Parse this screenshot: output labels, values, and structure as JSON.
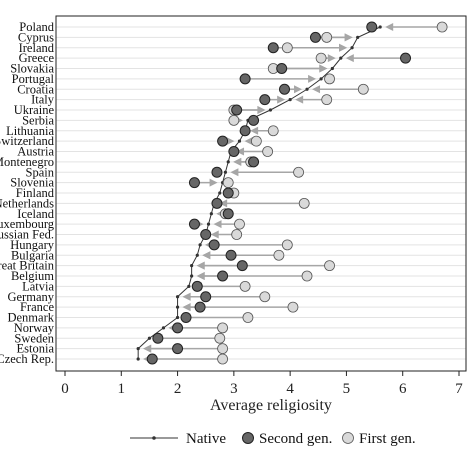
{
  "chart_data": {
    "type": "scatter",
    "xlabel": "Average religiosity",
    "xlim": [
      0,
      7
    ],
    "xticks": [
      0,
      1,
      2,
      3,
      4,
      5,
      6,
      7
    ],
    "grid": "horizontal",
    "legend_position": "bottom",
    "categories": [
      "Poland",
      "Cyprus",
      "Ireland",
      "Greece",
      "Slovakia",
      "Portugal",
      "Croatia",
      "Italy",
      "Ukraine",
      "Serbia",
      "Lithuania",
      "Switzerland",
      "Austria",
      "Montenegro",
      "Spain",
      "Slovenia",
      "Finland",
      "Netherlands",
      "Iceland",
      "Luxembourg",
      "Russian Fed.",
      "Hungary",
      "Bulgaria",
      "Great Britain",
      "Belgium",
      "Latvia",
      "Germany",
      "France",
      "Denmark",
      "Norway",
      "Sweden",
      "Estonia",
      "Czech Rep."
    ],
    "series": [
      {
        "name": "Native",
        "marker": "small-dot-line",
        "color": "#333333",
        "values": [
          5.6,
          5.2,
          5.1,
          4.9,
          4.75,
          4.55,
          4.3,
          4.0,
          3.65,
          3.25,
          3.2,
          3.1,
          2.95,
          2.9,
          2.85,
          2.8,
          2.75,
          2.65,
          2.6,
          2.55,
          2.5,
          2.4,
          2.35,
          2.25,
          2.25,
          2.2,
          2.0,
          2.0,
          2.0,
          1.75,
          1.5,
          1.3,
          1.3
        ]
      },
      {
        "name": "Second gen.",
        "marker": "dark-circle",
        "color": "#666666",
        "values": [
          5.45,
          4.45,
          3.7,
          6.05,
          3.85,
          3.2,
          3.9,
          3.55,
          3.05,
          3.35,
          3.2,
          2.8,
          3.0,
          3.35,
          2.7,
          2.3,
          2.9,
          2.7,
          2.9,
          2.3,
          2.5,
          2.65,
          2.95,
          3.15,
          2.8,
          2.35,
          2.5,
          2.4,
          2.15,
          2.0,
          1.65,
          2.0,
          1.55
        ]
      },
      {
        "name": "First gen.",
        "marker": "light-circle",
        "color": "#d9d9d9",
        "values": [
          6.7,
          4.65,
          3.95,
          4.55,
          3.7,
          4.7,
          5.3,
          4.65,
          3.0,
          3.0,
          3.7,
          3.4,
          3.6,
          3.3,
          4.15,
          2.9,
          3.0,
          4.25,
          2.85,
          3.1,
          3.05,
          3.95,
          3.8,
          4.7,
          4.3,
          3.2,
          3.55,
          4.05,
          3.25,
          2.8,
          2.75,
          2.8,
          2.8
        ]
      }
    ],
    "arrow_color": "#a6a6a6"
  }
}
